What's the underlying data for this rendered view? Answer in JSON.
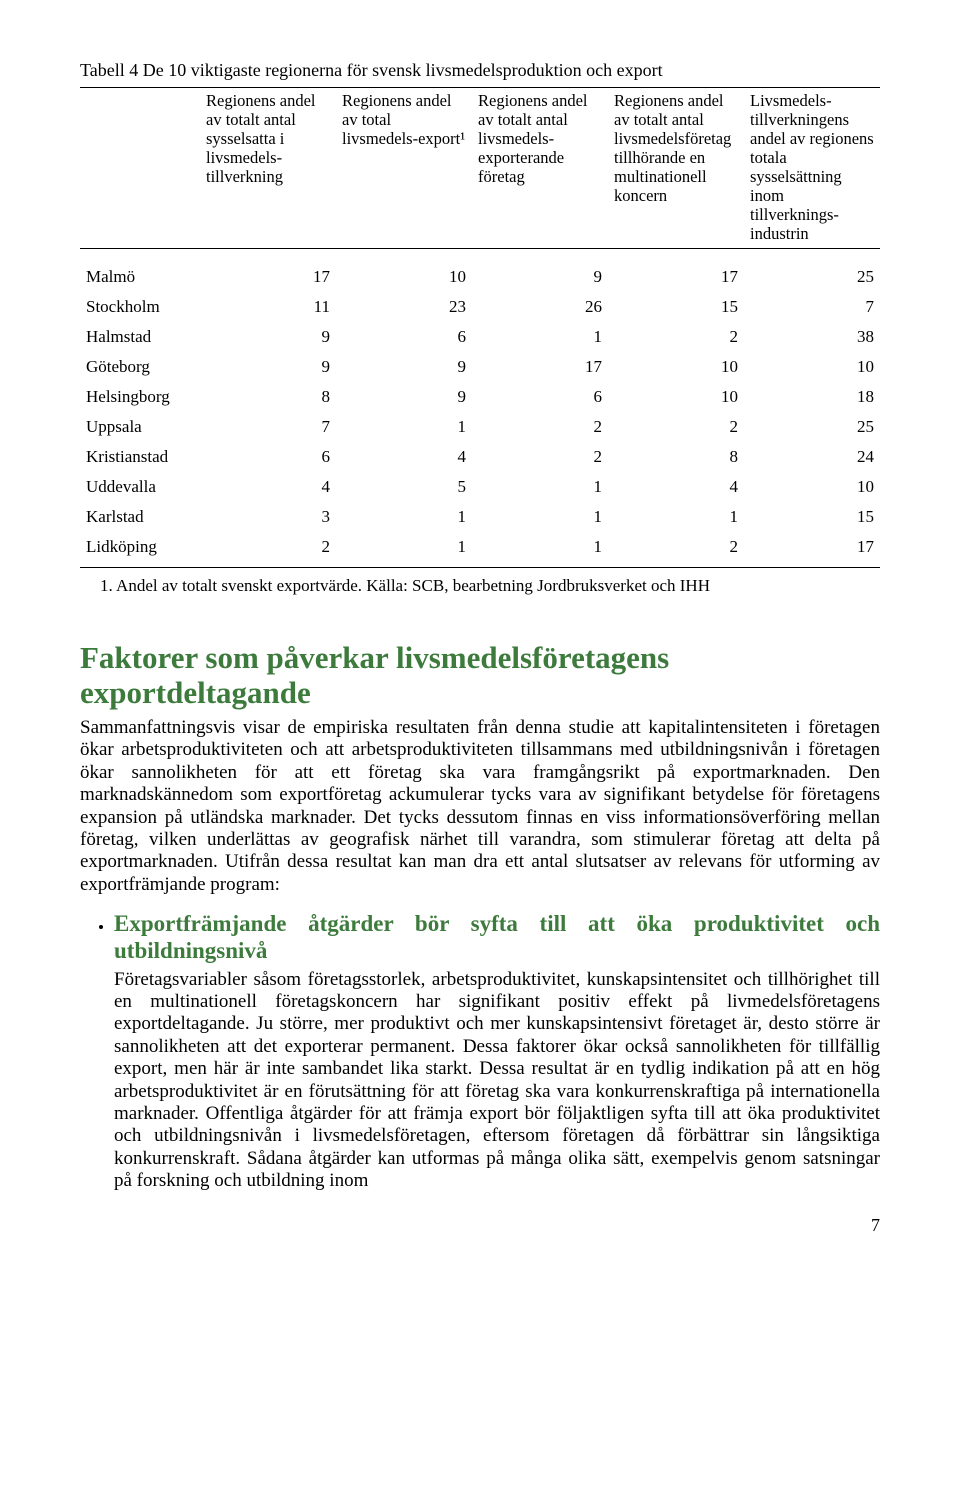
{
  "table": {
    "title": "Tabell 4 De 10 viktigaste regionerna för svensk livsmedelsproduktion och export",
    "headers": [
      "",
      "Regionens andel av totalt antal sysselsatta i livsmedels-tillverkning",
      "Regionens andel av total livsmedels-export¹",
      "Regionens andel av totalt antal livsmedels-exporterande företag",
      "Regionens andel av totalt antal livsmedelsföretag tillhörande en multinationell koncern",
      "Livsmedels-tillverkningens andel av regionens totala sysselsättning inom tillverknings-industrin"
    ],
    "rows": [
      [
        "Malmö",
        "17",
        "10",
        "9",
        "17",
        "25"
      ],
      [
        "Stockholm",
        "11",
        "23",
        "26",
        "15",
        "7"
      ],
      [
        "Halmstad",
        "9",
        "6",
        "1",
        "2",
        "38"
      ],
      [
        "Göteborg",
        "9",
        "9",
        "17",
        "10",
        "10"
      ],
      [
        "Helsingborg",
        "8",
        "9",
        "6",
        "10",
        "18"
      ],
      [
        "Uppsala",
        "7",
        "1",
        "2",
        "2",
        "25"
      ],
      [
        "Kristianstad",
        "6",
        "4",
        "2",
        "8",
        "24"
      ],
      [
        "Uddevalla",
        "4",
        "5",
        "1",
        "4",
        "10"
      ],
      [
        "Karlstad",
        "3",
        "1",
        "1",
        "1",
        "15"
      ],
      [
        "Lidköping",
        "2",
        "1",
        "1",
        "2",
        "17"
      ]
    ],
    "footnote": "1. Andel av totalt svenskt exportvärde. Källa: SCB, bearbetning Jordbruksverket och IHH"
  },
  "section_heading": "Faktorer som påverkar livsmedelsföretagens exportdeltagande",
  "section_body": "Sammanfattningsvis visar de empiriska resultaten från denna studie att kapitalintensiteten i företagen ökar arbetsproduktiviteten och att arbetsproduktiviteten tillsammans med utbildningsnivån i företagen ökar sannolikheten för att ett företag ska vara framgångsrikt på exportmarknaden. Den marknadskännedom som exportföretag ackumulerar tycks vara av signifikant betydelse för företagens expansion på utländska marknader. Det tycks dessutom finnas en viss informationsöverföring mellan företag, vilken underlättas av geografisk närhet till varandra, som stimulerar företag att delta på exportmarknaden. Utifrån dessa resultat kan man dra ett antal slutsatser av relevans för utforming av exportfrämjande program:",
  "bullet": {
    "heading": "Exportfrämjande åtgärder bör syfta till att öka produktivitet och utbildningsnivå",
    "body": "Företagsvariabler såsom företagsstorlek, arbetsproduktivitet, kunskapsintensitet och tillhörighet till en multinationell företagskoncern har signifikant positiv effekt på livmedelsföretagens exportdeltagande. Ju större, mer produktivt och mer kunskapsintensivt företaget är, desto större är sannolikheten att det exporterar permanent. Dessa faktorer ökar också sannolikheten för tillfällig export, men här är inte sambandet lika starkt. Dessa resultat är en tydlig indikation på att en hög arbetsproduktivitet är en förutsättning för att företag ska vara konkurrenskraftiga på internationella marknader. Offentliga åtgärder för att främja export bör följaktligen syfta till att öka produktivitet och utbildningsnivån i livsmedelsföretagen, eftersom företagen då förbättrar sin långsiktiga konkurrenskraft. Sådana åtgärder kan utformas på många olika sätt, exempelvis genom satsningar på forskning och utbildning inom"
  },
  "page_number": "7",
  "colors": {
    "heading_green": "#3d7b3d",
    "text_black": "#000000",
    "background": "#ffffff"
  }
}
